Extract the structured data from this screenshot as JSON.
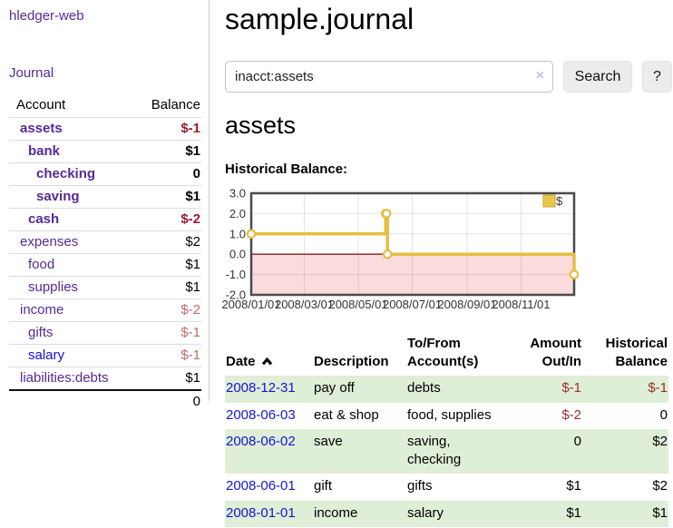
{
  "colors": {
    "link_purple": "#552a97",
    "link_blue": "#1414d2",
    "negative_strong": "#9e1b2e",
    "negative_light": "#c06a6a",
    "negative_table": "#99302e",
    "row_green": "#dfeed7",
    "chart_line": "#e6bd45",
    "chart_negative_region": "#fadcdc",
    "chart_zero_line": "#8b1a1a"
  },
  "sidebar": {
    "brand": "hledger-web",
    "journal_link": "Journal",
    "accounts_table": {
      "header": {
        "account": "Account",
        "balance": "Balance"
      },
      "rows": [
        {
          "name": "assets",
          "balance": "$-1",
          "level": 1,
          "bold": true,
          "balance_style": "neg-strong"
        },
        {
          "name": "bank",
          "balance": "$1",
          "level": 2,
          "bold": true,
          "balance_style": ""
        },
        {
          "name": "checking",
          "balance": "0",
          "level": 3,
          "bold": true,
          "balance_style": ""
        },
        {
          "name": "saving",
          "balance": "$1",
          "level": 3,
          "bold": true,
          "balance_style": ""
        },
        {
          "name": "cash",
          "balance": "$-2",
          "level": 2,
          "bold": true,
          "balance_style": "neg-strong"
        },
        {
          "name": "expenses",
          "balance": "$2",
          "level": 1,
          "bold": false,
          "balance_style": ""
        },
        {
          "name": "food",
          "balance": "$1",
          "level": 2,
          "bold": false,
          "balance_style": ""
        },
        {
          "name": "supplies",
          "balance": "$1",
          "level": 2,
          "bold": false,
          "balance_style": ""
        },
        {
          "name": "income",
          "balance": "$-2",
          "level": 1,
          "bold": false,
          "balance_style": "neg-light"
        },
        {
          "name": "gifts",
          "balance": "$-1",
          "level": 2,
          "bold": false,
          "balance_style": "neg-light"
        },
        {
          "name": "salary",
          "balance": "$-1",
          "level": 2,
          "bold": false,
          "balance_style": "neg-light",
          "link_color": "blue"
        },
        {
          "name": "liabilities:debts",
          "balance": "$1",
          "level": 1,
          "bold": false,
          "balance_style": ""
        }
      ],
      "total": "0"
    }
  },
  "header": {
    "title": "sample.journal"
  },
  "search": {
    "value": "inacct:assets",
    "clear_icon": "×",
    "button_label": "Search",
    "help_label": "?"
  },
  "account_page": {
    "title": "assets",
    "chart_label": "Historical Balance:"
  },
  "chart_data": {
    "type": "line",
    "subtype": "step-after",
    "title": "Historical Balance of assets",
    "series": [
      {
        "name": "$",
        "points": [
          {
            "date": "2008/01/01",
            "day": 0,
            "value": 1
          },
          {
            "date": "2008/06/01",
            "day": 152,
            "value": 2
          },
          {
            "date": "2008/06/02",
            "day": 153,
            "value": 2
          },
          {
            "date": "2008/06/03",
            "day": 154,
            "value": 0
          },
          {
            "date": "2008/12/31",
            "day": 365,
            "value": -1
          }
        ]
      }
    ],
    "x_ticks": [
      {
        "label": "2008/01/01",
        "day": 0
      },
      {
        "label": "2008/03/01",
        "day": 60
      },
      {
        "label": "2008/05/01",
        "day": 121
      },
      {
        "label": "2008/07/01",
        "day": 182
      },
      {
        "label": "2008/09/01",
        "day": 244
      },
      {
        "label": "2008/11/01",
        "day": 305
      }
    ],
    "x_range_days": [
      0,
      365
    ],
    "y_ticks": [
      "3.0",
      "2.0",
      "1.0",
      "0.0",
      "-1.0",
      "-2.0"
    ],
    "ylim": [
      -2,
      3
    ],
    "grid": true,
    "legend": {
      "label": "$",
      "position": "top-right"
    },
    "colors": {
      "line": "#e6bd45",
      "marker_fill": "#ffffff",
      "negative_region": "#fadcdc",
      "zero_line": "#8b1a1a",
      "grid": "rgba(0,0,0,0.10)",
      "border": "#4a4a4a",
      "legend_fill": "#eac54f",
      "legend_stroke": "#c9a227"
    }
  },
  "register_table": {
    "columns": [
      "Date",
      "Description",
      "To/From Account(s)",
      "Amount Out/In",
      "Historical Balance"
    ],
    "sort_icon": "chevron-up",
    "rows": [
      {
        "date": "2008-12-31",
        "description": "pay off",
        "accounts": "debts",
        "amount": "$-1",
        "balance": "$-1",
        "shade": true
      },
      {
        "date": "2008-06-03",
        "description": "eat & shop",
        "accounts": "food, supplies",
        "amount": "$-2",
        "balance": "0",
        "shade": false
      },
      {
        "date": "2008-06-02",
        "description": "save",
        "accounts": "saving, checking",
        "amount": "0",
        "balance": "$2",
        "shade": true
      },
      {
        "date": "2008-06-01",
        "description": "gift",
        "accounts": "gifts",
        "amount": "$1",
        "balance": "$2",
        "shade": false
      },
      {
        "date": "2008-01-01",
        "description": "income",
        "accounts": "salary",
        "amount": "$1",
        "balance": "$1",
        "shade": true
      }
    ]
  }
}
